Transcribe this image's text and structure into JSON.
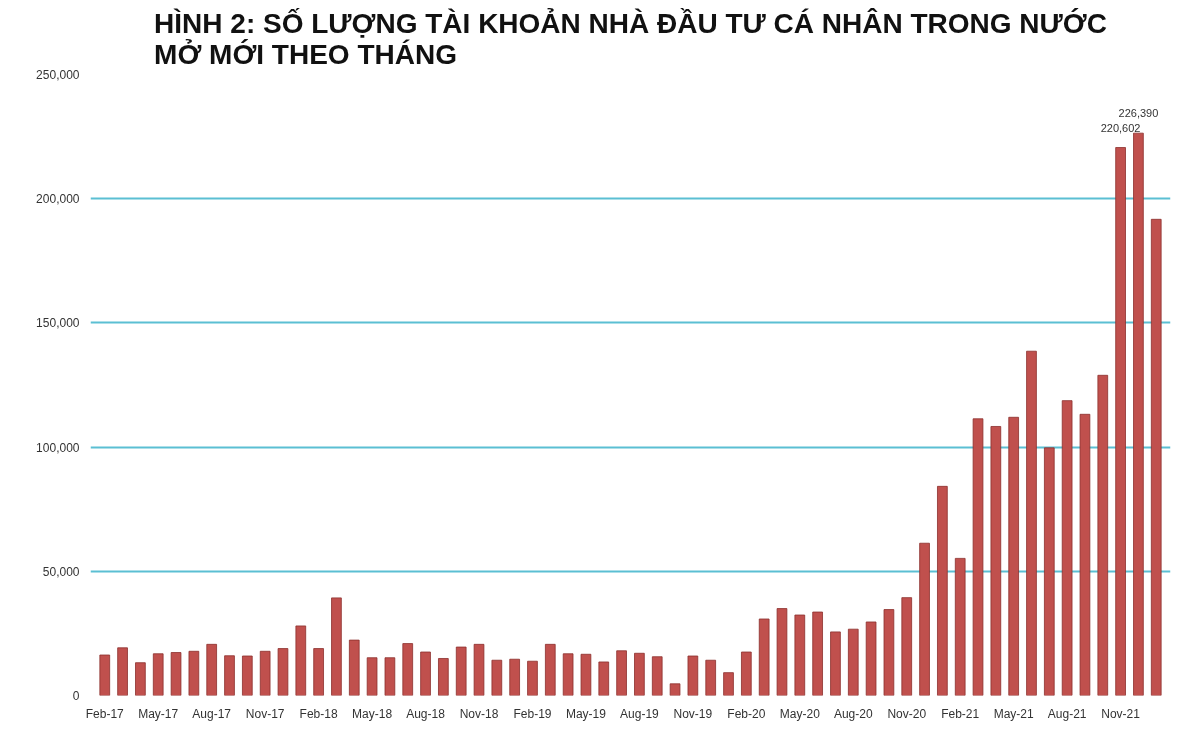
{
  "chart_data": {
    "type": "bar",
    "title": "HÌNH 2: SỐ LƯỢNG TÀI KHOẢN NHÀ ĐẦU TƯ CÁ NHÂN TRONG NƯỚC\nMỞ MỚI THEO THÁNG",
    "categories": [
      "Feb-17",
      null,
      null,
      "May-17",
      null,
      null,
      "Aug-17",
      null,
      null,
      "Nov-17",
      null,
      null,
      "Feb-18",
      null,
      null,
      "May-18",
      null,
      null,
      "Aug-18",
      null,
      null,
      "Nov-18",
      null,
      null,
      "Feb-19",
      null,
      null,
      "May-19",
      null,
      null,
      "Aug-19",
      null,
      null,
      "Nov-19",
      null,
      null,
      "Feb-20",
      null,
      null,
      "May-20",
      null,
      null,
      "Aug-20",
      null,
      null,
      "Nov-20",
      null,
      null,
      "Feb-21",
      null,
      null,
      "May-21",
      null,
      null,
      "Aug-21",
      null,
      null,
      "Nov-21",
      null,
      null
    ],
    "values": [
      16300,
      19200,
      13200,
      16800,
      17300,
      17800,
      20600,
      16000,
      15900,
      17800,
      18900,
      28000,
      18900,
      39300,
      22300,
      15200,
      15200,
      20900,
      17500,
      14900,
      19500,
      20600,
      14200,
      14600,
      13800,
      20600,
      16800,
      16600,
      13500,
      18000,
      17000,
      15600,
      4700,
      15900,
      14200,
      9200,
      17500,
      30800,
      35000,
      32400,
      33600,
      25600,
      26700,
      29600,
      34600,
      39400,
      61300,
      84200,
      55200,
      111400,
      108300,
      112000,
      138600,
      99700,
      118700,
      113200,
      128900,
      220602,
      226390,
      191700
    ],
    "value_labels": [
      null,
      null,
      null,
      null,
      null,
      null,
      null,
      null,
      null,
      null,
      null,
      null,
      null,
      null,
      null,
      null,
      null,
      null,
      null,
      null,
      null,
      null,
      null,
      null,
      null,
      null,
      null,
      null,
      null,
      null,
      null,
      null,
      null,
      null,
      null,
      null,
      null,
      null,
      null,
      null,
      null,
      null,
      null,
      null,
      null,
      null,
      null,
      null,
      null,
      null,
      null,
      null,
      null,
      null,
      null,
      null,
      null,
      "220,602",
      "226,390",
      null
    ],
    "color": "#c0504d",
    "ylim": [
      0,
      250000
    ],
    "yticks": [
      {
        "value": 0,
        "label": "0"
      },
      {
        "value": 50000,
        "label": "50,000"
      },
      {
        "value": 100000,
        "label": "100,000"
      },
      {
        "value": 150000,
        "label": "150,000"
      },
      {
        "value": 200000,
        "label": "200,000"
      },
      {
        "value": 250000,
        "label": "250,000"
      }
    ],
    "grid": "y"
  }
}
